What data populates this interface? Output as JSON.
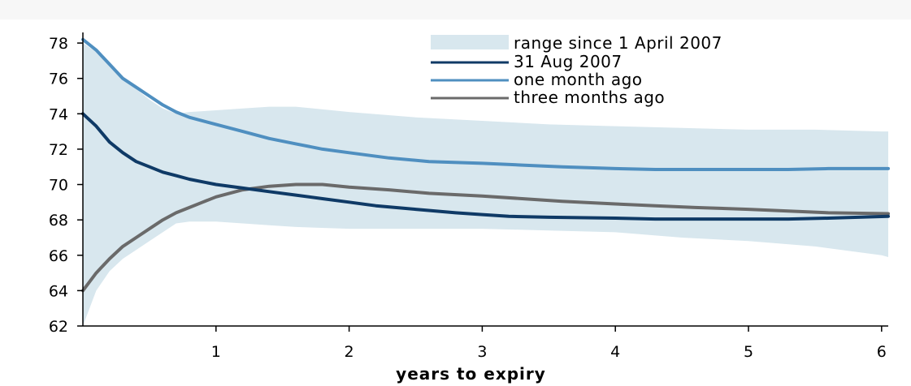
{
  "chart_data": {
    "type": "line",
    "title": "",
    "xlabel": "years to expiry",
    "ylabel": "",
    "xlim": [
      0,
      6.05
    ],
    "ylim": [
      62,
      78.6
    ],
    "x_ticks": [
      1,
      2,
      3,
      4,
      5,
      6
    ],
    "y_ticks": [
      62,
      64,
      66,
      68,
      70,
      72,
      74,
      76,
      78
    ],
    "grid": false,
    "legend_position": "top-right",
    "band": {
      "name": "range since 1 April 2007",
      "color": "#d8e7ee",
      "x": [
        0.0,
        0.1,
        0.2,
        0.3,
        0.4,
        0.5,
        0.6,
        0.7,
        0.8,
        1.0,
        1.2,
        1.4,
        1.6,
        2.0,
        2.5,
        3.0,
        3.5,
        4.0,
        4.5,
        5.0,
        5.5,
        6.0,
        6.05
      ],
      "upper": [
        78.0,
        77.5,
        76.8,
        76.1,
        75.4,
        74.8,
        74.3,
        74.0,
        74.1,
        74.2,
        74.3,
        74.4,
        74.4,
        74.1,
        73.8,
        73.6,
        73.4,
        73.3,
        73.2,
        73.1,
        73.1,
        73.0,
        73.0
      ],
      "lower": [
        62.0,
        64.0,
        65.1,
        65.8,
        66.3,
        66.8,
        67.3,
        67.8,
        67.9,
        67.9,
        67.8,
        67.7,
        67.6,
        67.5,
        67.5,
        67.5,
        67.4,
        67.3,
        67.0,
        66.8,
        66.5,
        66.0,
        65.9
      ]
    },
    "series": [
      {
        "name": "31 Aug 2007",
        "color": "#0f3a66",
        "x": [
          0.0,
          0.1,
          0.2,
          0.3,
          0.4,
          0.5,
          0.6,
          0.7,
          0.8,
          1.0,
          1.2,
          1.4,
          1.6,
          1.8,
          2.0,
          2.2,
          2.5,
          2.8,
          3.0,
          3.2,
          3.5,
          4.0,
          4.3,
          4.5,
          5.0,
          5.3,
          5.6,
          6.05
        ],
        "values": [
          74.0,
          73.3,
          72.4,
          71.8,
          71.3,
          71.0,
          70.7,
          70.5,
          70.3,
          70.0,
          69.8,
          69.6,
          69.4,
          69.2,
          69.0,
          68.8,
          68.6,
          68.4,
          68.3,
          68.2,
          68.15,
          68.1,
          68.05,
          68.05,
          68.05,
          68.05,
          68.1,
          68.2
        ]
      },
      {
        "name": "one month ago",
        "color": "#4f8fc0",
        "x": [
          0.0,
          0.1,
          0.2,
          0.3,
          0.4,
          0.5,
          0.6,
          0.7,
          0.8,
          1.0,
          1.2,
          1.4,
          1.6,
          1.8,
          2.0,
          2.3,
          2.6,
          3.0,
          3.3,
          3.6,
          4.0,
          4.3,
          4.6,
          5.0,
          5.3,
          5.6,
          6.05
        ],
        "values": [
          78.2,
          77.6,
          76.8,
          76.0,
          75.5,
          75.0,
          74.5,
          74.1,
          73.8,
          73.4,
          73.0,
          72.6,
          72.3,
          72.0,
          71.8,
          71.5,
          71.3,
          71.2,
          71.1,
          71.0,
          70.9,
          70.85,
          70.85,
          70.85,
          70.85,
          70.9,
          70.9
        ]
      },
      {
        "name": "three months ago",
        "color": "#6a6a6a",
        "x": [
          0.0,
          0.1,
          0.2,
          0.3,
          0.4,
          0.5,
          0.6,
          0.7,
          0.8,
          0.9,
          1.0,
          1.2,
          1.4,
          1.6,
          1.8,
          2.0,
          2.3,
          2.6,
          3.0,
          3.3,
          3.6,
          4.0,
          4.3,
          4.6,
          5.0,
          5.3,
          5.6,
          6.05
        ],
        "values": [
          64.0,
          65.0,
          65.8,
          66.5,
          67.0,
          67.5,
          68.0,
          68.4,
          68.7,
          69.0,
          69.3,
          69.7,
          69.9,
          70.0,
          70.0,
          69.85,
          69.7,
          69.5,
          69.35,
          69.2,
          69.05,
          68.9,
          68.8,
          68.7,
          68.6,
          68.5,
          68.4,
          68.35
        ]
      }
    ]
  }
}
